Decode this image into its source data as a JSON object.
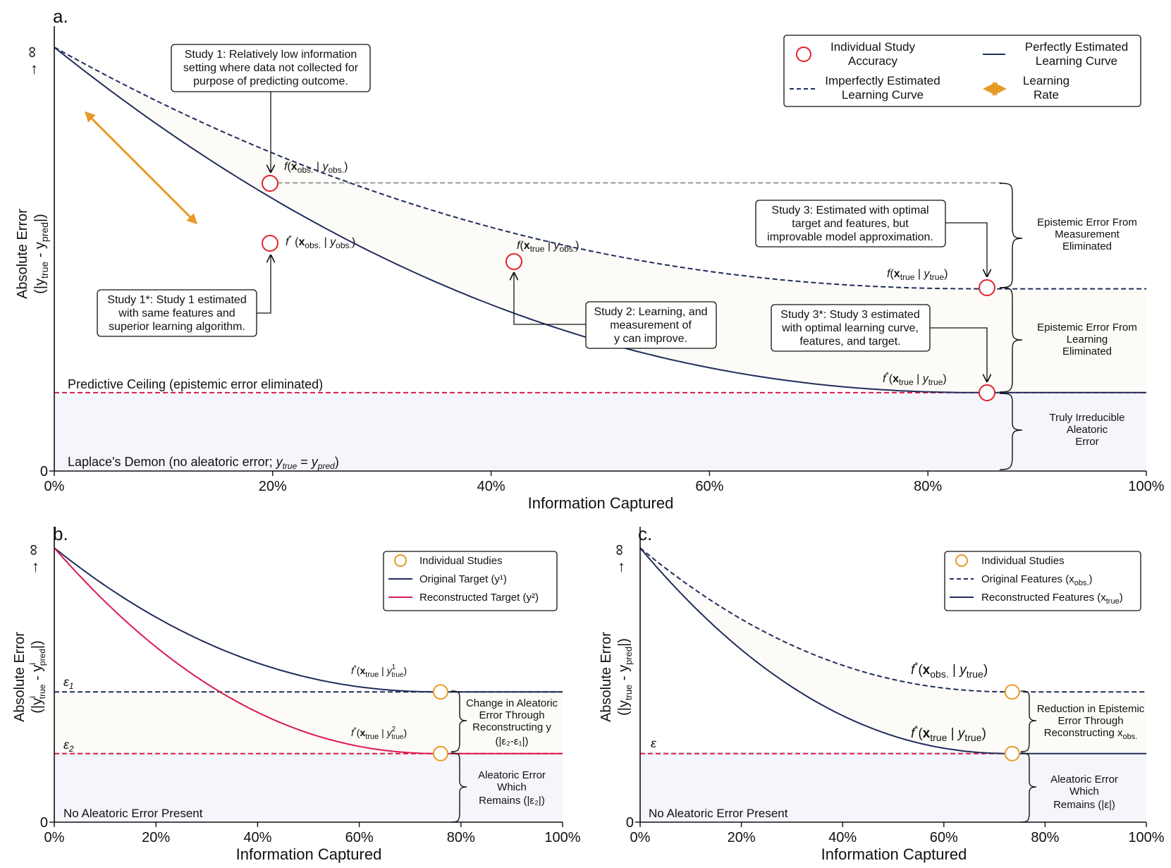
{
  "chart_data": [
    {
      "panel": "a.",
      "type": "line",
      "xlabel": "Information Captured",
      "ylabel_main": "Absolute Error",
      "ylabel_sub": "(|y",
      "ylabel_true": "true",
      "ylabel_dash": " - y",
      "ylabel_pred": "pred",
      "ylabel_end": "|)",
      "y_top_symbol": "→ ∞",
      "y_zero": "0",
      "xlim": [
        0,
        100
      ],
      "x_ticks": [
        "0%",
        "20%",
        "40%",
        "60%",
        "80%",
        "100%"
      ],
      "curve_start": 100,
      "series": [
        {
          "name": "Imperfectly Estimated Learning Curve",
          "style": "dashed",
          "color": "#1f2d5c",
          "plateau": 43,
          "flat_from": 85,
          "decay": 11
        },
        {
          "name": "Perfectly Estimated Learning Curve",
          "style": "solid",
          "color": "#1f2d5c",
          "plateau": 18.5,
          "flat_from": 85,
          "decay": 15
        }
      ],
      "predictive_ceiling": 18.5,
      "gray_line_level": 68,
      "points": [
        {
          "name": "study1",
          "x": 19.7,
          "y": 68,
          "label": "f(x_obs. | y_obs.)"
        },
        {
          "name": "study1star",
          "x": 19.7,
          "y": 54,
          "label": "f*(x_obs. | y_obs.)"
        },
        {
          "name": "study2",
          "x": 42,
          "y": 49
        },
        {
          "name": "study3",
          "x": 85.4,
          "y": 43
        },
        {
          "name": "study3star",
          "x": 85.4,
          "y": 18.5
        }
      ],
      "ceiling_text": "Predictive Ceiling (epistemic error eliminated)",
      "laplace_text_a": "Laplace's Demon (no aleatoric error; ",
      "laplace_text_b": "y",
      "laplace_text_c": "true",
      "laplace_text_d": " = ",
      "laplace_text_e": "y",
      "laplace_text_f": "pred",
      "laplace_text_g": ")",
      "label_f_obs_obs": {
        "f": "f",
        "x": "x",
        "s1": "obs.",
        "bar": "|",
        "y": "y",
        "s2": "obs."
      },
      "label_f_true_obs": {
        "f": "f",
        "x": "x",
        "s1": "true",
        "bar": "|",
        "y": "y",
        "s2": "obs."
      },
      "label_f_true_true": {
        "f": "f",
        "x": "x",
        "s1": "true",
        "bar": "|",
        "y": "y",
        "s2": "true"
      },
      "label_fs_obs_obs": {
        "f": "f",
        "x": "x",
        "s1": "obs.",
        "bar": "|",
        "y": "y",
        "s2": "obs."
      },
      "label_fs_true_true": {
        "f": "f",
        "x": "x",
        "s1": "true",
        "bar": "|",
        "y": "y",
        "s2": "true"
      },
      "callouts": {
        "study1": [
          "Study 1: Relatively low information",
          "setting where data not collected for",
          "purpose of predicting outcome."
        ],
        "study1star": [
          "Study 1*: Study 1 estimated",
          "with same features and",
          "superior learning algorithm."
        ],
        "study2": [
          "Study 2: Learning, and",
          "measurement of",
          "y can improve."
        ],
        "study3": [
          "Study 3: Estimated with optimal",
          "target and features, but",
          "improvable model approximation."
        ],
        "study3star": [
          "Study 3*: Study 3 estimated",
          "with optimal learning curve,",
          "features, and target."
        ]
      },
      "braces": {
        "measurement": [
          "Epistemic Error From",
          "Measurement",
          "Eliminated"
        ],
        "learning": [
          "Epistemic Error From",
          "Learning",
          "Eliminated"
        ],
        "irreducible": [
          "Truly Irreducible",
          "Aleatoric",
          "Error"
        ]
      },
      "legend": {
        "study": [
          "Individual Study",
          "Accuracy"
        ],
        "perfect": [
          "Perfectly Estimated",
          "Learning Curve"
        ],
        "imperfect": [
          "Imperfectly Estimated",
          "Learning Curve"
        ],
        "rate": [
          "Learning",
          "Rate"
        ]
      },
      "learning_rate_arrow_color": "#e69a28",
      "marker_color": "#e3212c",
      "ceiling_color": "#d81b4e"
    },
    {
      "panel": "b.",
      "type": "line",
      "xlabel": "Information Captured",
      "ylabel_main": "Absolute Error",
      "y_top_symbol": "→ ∞",
      "y_zero": "0",
      "xlim": [
        0,
        100
      ],
      "x_ticks": [
        "0%",
        "20%",
        "40%",
        "60%",
        "80%",
        "100%"
      ],
      "series": [
        {
          "name": "Original Target (y1)",
          "color": "#1f2d5c",
          "plateau": 47.5,
          "flat_from": 76,
          "decay": 15
        },
        {
          "name": "Reconstructed Target (y2)",
          "color": "#d81b4e",
          "plateau": 25,
          "flat_from": 76,
          "decay": 13
        }
      ],
      "eps1_level": 47.5,
      "eps2_level": 25,
      "eps1": "ε",
      "eps1_sub": "1",
      "eps2": "ε",
      "eps2_sub": "2",
      "points_x": 76,
      "no_aleatoric": "No Aleatoric Error Present",
      "label_y1": {
        "f": "f",
        "x": "x",
        "s1": "true",
        "bar": "|",
        "y": "y",
        "sup": "1",
        "s2": "true"
      },
      "label_y2": {
        "f": "f",
        "x": "x",
        "s1": "true",
        "bar": "|",
        "y": "y",
        "sup": "2",
        "s2": "true"
      },
      "brace_upper": [
        "Change in Aleatoric",
        "Error Through",
        "Reconstructing y",
        "(|ε₂-ε₁|)"
      ],
      "brace_lower": [
        "Aleatoric Error",
        "Which",
        "Remains (|ε₂|)"
      ],
      "legend": {
        "studies": "Individual Studies",
        "original": "Original Target (y¹)",
        "reconstructed": "Reconstructed Target (y²)"
      },
      "marker_color": "#e69a28"
    },
    {
      "panel": "c.",
      "type": "line",
      "xlabel": "Information Captured",
      "ylabel_main": "Absolute Error",
      "y_top_symbol": "→ ∞",
      "y_zero": "0",
      "xlim": [
        0,
        100
      ],
      "x_ticks": [
        "0%",
        "20%",
        "40%",
        "60%",
        "80%",
        "100%"
      ],
      "series": [
        {
          "name": "Original Features (x_obs.)",
          "style": "dashed",
          "color": "#1f2d5c",
          "plateau": 47.5,
          "flat_from": 73.5,
          "decay": 15
        },
        {
          "name": "Reconstructed Features (x_true)",
          "style": "solid",
          "color": "#1f2d5c",
          "plateau": 25,
          "flat_from": 73.5,
          "decay": 13
        }
      ],
      "eps_level": 25,
      "eps": "ε",
      "points_x": 73.5,
      "no_aleatoric": "No Aleatoric Error Present",
      "label_obs": {
        "f": "f",
        "x": "x",
        "s1": "obs.",
        "bar": "|",
        "y": "y",
        "s2": "true"
      },
      "label_true": {
        "f": "f",
        "x": "x",
        "s1": "true",
        "bar": "|",
        "y": "y",
        "s2": "true"
      },
      "brace_upper": [
        "Reduction in Epistemic",
        "Error Through",
        "Reconstructing x",
        "obs."
      ],
      "brace_lower": [
        "Aleatoric Error",
        "Which",
        "Remains (|ε|)"
      ],
      "legend": {
        "studies": "Individual Studies",
        "original": "Original Features  (x",
        "original_sub": "obs.",
        "reconstructed": "Reconstructed Features (x",
        "reconstructed_sub": "true"
      },
      "marker_color": "#e69a28"
    }
  ]
}
